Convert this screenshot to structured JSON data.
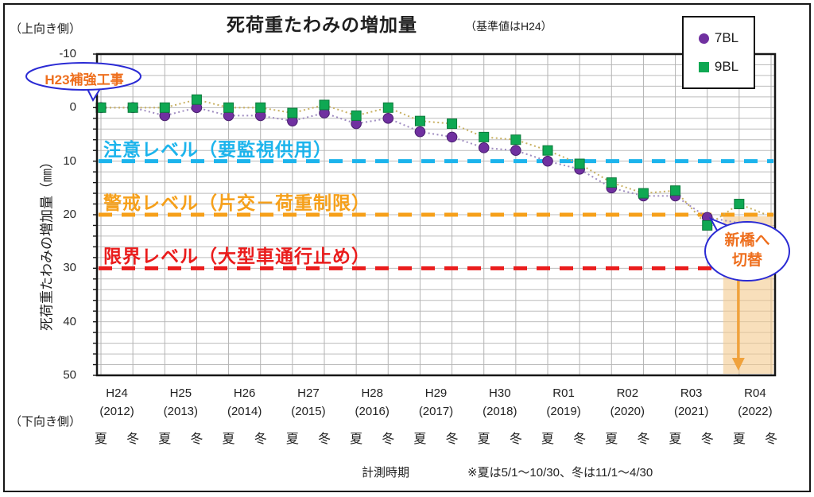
{
  "title": {
    "main": "死荷重たわみの増加量",
    "note": "（基準値はH24）"
  },
  "corner_labels": {
    "top": "（上向き側）",
    "bottom": "（下向き側）"
  },
  "y_axis": {
    "label": "死荷重たわみの増加量（㎜）"
  },
  "legend": {
    "items": [
      {
        "label": "7BL",
        "marker": "circle",
        "color": "#7030a0"
      },
      {
        "label": "9BL",
        "marker": "square",
        "color": "#0fa853"
      }
    ]
  },
  "thresholds": [
    {
      "label": "注意レベル（要監視供用）",
      "value": 10,
      "color": "#1cb4ec"
    },
    {
      "label": "警戒レベル（片交－荷重制限）",
      "value": 20,
      "color": "#f6a01a"
    },
    {
      "label": "限界レベル（大型車通行止め）",
      "value": 30,
      "color": "#ea1c1c"
    }
  ],
  "annotations": {
    "reinforcement": {
      "text": "H23補強工事",
      "color": "#ee6f1e",
      "outline": "#2a2ad4"
    },
    "bridge_switch": {
      "line1": "新橋へ",
      "line2": "切替",
      "color": "#ee6f1e",
      "outline": "#2a2ad4"
    }
  },
  "footer": {
    "label": "計測時期",
    "note": "※夏は5/1～10/30、冬は11/1～4/30"
  },
  "chart_data": {
    "type": "scatter",
    "title": "死荷重たわみの増加量",
    "subtitle": "（基準値はH24）",
    "ylabel": "死荷重たわみの増加量（㎜）",
    "ylim": [
      -10,
      50
    ],
    "y_axis_inverted": true,
    "y_tick_step": 10,
    "y_minor_step": 2,
    "grid": true,
    "legend_position": "top-right",
    "x_years": [
      {
        "era": "H24",
        "year": "(2012)"
      },
      {
        "era": "H25",
        "year": "(2013)"
      },
      {
        "era": "H26",
        "year": "(2014)"
      },
      {
        "era": "H27",
        "year": "(2015)"
      },
      {
        "era": "H28",
        "year": "(2016)"
      },
      {
        "era": "H29",
        "year": "(2017)"
      },
      {
        "era": "H30",
        "year": "(2018)"
      },
      {
        "era": "R01",
        "year": "(2019)"
      },
      {
        "era": "R02",
        "year": "(2020)"
      },
      {
        "era": "R03",
        "year": "(2021)"
      },
      {
        "era": "R04",
        "year": "(2022)"
      }
    ],
    "season_labels": [
      "夏",
      "冬"
    ],
    "series": [
      {
        "name": "7BL",
        "marker": "circle",
        "color": "#7030a0",
        "trend_color": "#9f8cc0",
        "values": [
          0,
          0,
          1.5,
          0,
          1.5,
          1.5,
          2.5,
          1,
          3,
          2,
          4.5,
          5.5,
          7.5,
          8,
          10,
          11.5,
          15,
          16.5,
          16.5,
          20.5,
          null,
          null
        ]
      },
      {
        "name": "9BL",
        "marker": "square",
        "color": "#0fa853",
        "trend_color": "#c8b061",
        "values": [
          0,
          0,
          0,
          -1.5,
          0,
          0,
          1,
          -0.5,
          1.5,
          0,
          2.5,
          3,
          5.5,
          6,
          8,
          10.5,
          14,
          16,
          15.5,
          22,
          18,
          null
        ]
      }
    ],
    "threshold_lines": [
      10,
      20,
      30
    ],
    "highlight_region": {
      "start_label": "R04夏",
      "from_value": 20,
      "to_value": 50,
      "note": "新橋へ切替"
    }
  }
}
